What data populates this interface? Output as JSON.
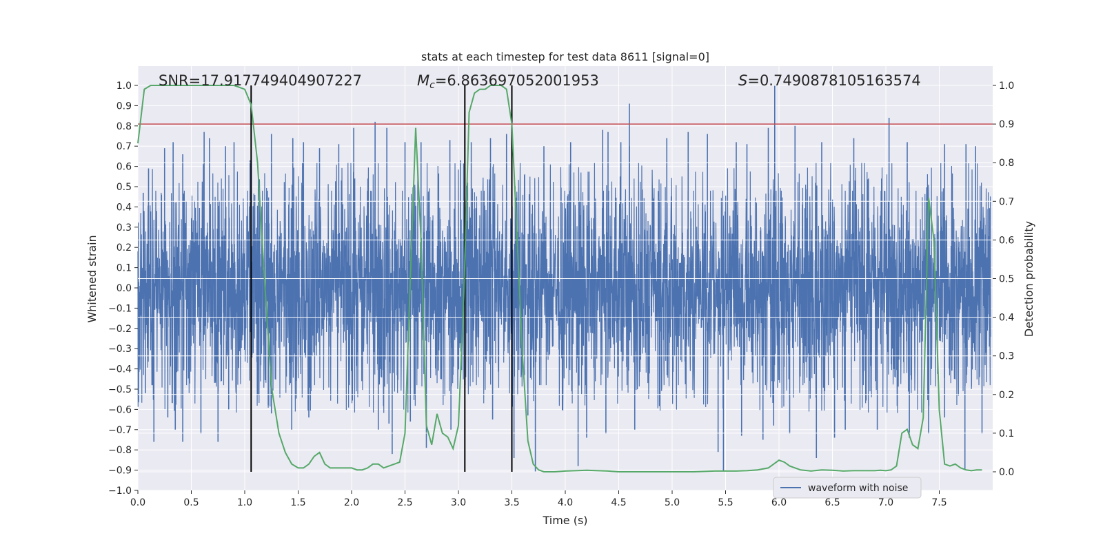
{
  "chart_data": {
    "type": "line",
    "title": "stats at each timestep for test data 8611 [signal=0]",
    "xlabel": "Time (s)",
    "ylabel": "Whitened strain",
    "y2label": "Detection probability",
    "xlim": [
      0.0,
      8.0
    ],
    "ylim": [
      -1.0,
      1.0
    ],
    "y2lim": [
      -0.045,
      1.045
    ],
    "xticks": [
      "0.0",
      "0.5",
      "1.0",
      "1.5",
      "2.0",
      "2.5",
      "3.0",
      "3.5",
      "4.0",
      "4.5",
      "5.0",
      "5.5",
      "6.0",
      "6.5",
      "7.0",
      "7.5"
    ],
    "yticks": [
      "-1.0",
      "-0.9",
      "-0.8",
      "-0.7",
      "-0.6",
      "-0.5",
      "-0.4",
      "-0.3",
      "-0.2",
      "-0.1",
      "0.0",
      "0.1",
      "0.2",
      "0.3",
      "0.4",
      "0.5",
      "0.6",
      "0.7",
      "0.8",
      "0.9",
      "1.0"
    ],
    "y2ticks": [
      "0.0",
      "0.1",
      "0.2",
      "0.3",
      "0.4",
      "0.5",
      "0.6",
      "0.7",
      "0.8",
      "0.9",
      "1.0"
    ],
    "grid": true,
    "legend_position": "lower-right",
    "annotations": {
      "snr": "SNR=17.917749404907227",
      "mc_symbol": "M",
      "mc_sub": "c",
      "mc_value": "=6.863697052001953",
      "s_symbol": "S",
      "s_value": "=0.7490878105163574"
    },
    "series": [
      {
        "name": "waveform with noise",
        "axis": "left",
        "color": "#4c72b0",
        "samples": 4096,
        "t_end": 7.98,
        "core_amplitude": 0.48,
        "spikes_up": [
          {
            "t": 0.05,
            "v": 0.47
          },
          {
            "t": 0.1,
            "v": 0.59
          },
          {
            "t": 0.25,
            "v": 0.69
          },
          {
            "t": 0.33,
            "v": 0.72
          },
          {
            "t": 0.42,
            "v": 0.66
          },
          {
            "t": 0.62,
            "v": 0.77
          },
          {
            "t": 0.67,
            "v": 0.74
          },
          {
            "t": 0.82,
            "v": 0.7
          },
          {
            "t": 0.9,
            "v": 0.72
          },
          {
            "t": 1.05,
            "v": 0.63
          },
          {
            "t": 1.25,
            "v": 0.76
          },
          {
            "t": 1.45,
            "v": 0.74
          },
          {
            "t": 1.55,
            "v": 0.72
          },
          {
            "t": 1.7,
            "v": 0.69
          },
          {
            "t": 1.88,
            "v": 0.71
          },
          {
            "t": 2.02,
            "v": 0.79
          },
          {
            "t": 2.22,
            "v": 0.82
          },
          {
            "t": 2.33,
            "v": 0.79
          },
          {
            "t": 2.5,
            "v": 0.72
          },
          {
            "t": 2.65,
            "v": 0.72
          },
          {
            "t": 2.92,
            "v": 0.73
          },
          {
            "t": 3.02,
            "v": 0.63
          },
          {
            "t": 3.12,
            "v": 0.72
          },
          {
            "t": 3.3,
            "v": 0.74
          },
          {
            "t": 3.45,
            "v": 0.76
          },
          {
            "t": 3.8,
            "v": 0.7
          },
          {
            "t": 4.05,
            "v": 0.72
          },
          {
            "t": 4.35,
            "v": 0.78
          },
          {
            "t": 4.4,
            "v": 0.77
          },
          {
            "t": 4.52,
            "v": 0.72
          },
          {
            "t": 4.6,
            "v": 0.7
          },
          {
            "t": 4.6,
            "v": 0.91
          },
          {
            "t": 4.95,
            "v": 0.74
          },
          {
            "t": 5.15,
            "v": 0.77
          },
          {
            "t": 5.33,
            "v": 0.76
          },
          {
            "t": 5.6,
            "v": 0.72
          },
          {
            "t": 5.7,
            "v": 0.71
          },
          {
            "t": 5.9,
            "v": 0.79
          },
          {
            "t": 5.96,
            "v": 1.0
          },
          {
            "t": 6.15,
            "v": 0.8
          },
          {
            "t": 6.4,
            "v": 0.72
          },
          {
            "t": 6.7,
            "v": 0.74
          },
          {
            "t": 7.03,
            "v": 0.84
          },
          {
            "t": 7.2,
            "v": 0.72
          },
          {
            "t": 7.55,
            "v": 0.71
          },
          {
            "t": 7.75,
            "v": 0.71
          },
          {
            "t": 7.84,
            "v": 0.7
          }
        ],
        "spikes_down": [
          {
            "t": 0.07,
            "v": -0.52
          },
          {
            "t": 0.15,
            "v": -0.76
          },
          {
            "t": 0.28,
            "v": -0.64
          },
          {
            "t": 0.35,
            "v": -0.7
          },
          {
            "t": 0.42,
            "v": -0.76
          },
          {
            "t": 0.59,
            "v": -0.72
          },
          {
            "t": 0.75,
            "v": -0.76
          },
          {
            "t": 0.85,
            "v": -0.6
          },
          {
            "t": 1.22,
            "v": -0.58
          },
          {
            "t": 1.25,
            "v": -0.62
          },
          {
            "t": 1.44,
            "v": -0.7
          },
          {
            "t": 1.6,
            "v": -0.64
          },
          {
            "t": 2.25,
            "v": -0.7
          },
          {
            "t": 2.35,
            "v": -0.67
          },
          {
            "t": 2.38,
            "v": -0.82
          },
          {
            "t": 2.55,
            "v": -0.66
          },
          {
            "t": 2.7,
            "v": -0.79
          },
          {
            "t": 2.93,
            "v": -0.7
          },
          {
            "t": 3.32,
            "v": -0.65
          },
          {
            "t": 3.52,
            "v": -0.84
          },
          {
            "t": 3.65,
            "v": -0.63
          },
          {
            "t": 3.72,
            "v": -0.91
          },
          {
            "t": 4.12,
            "v": -0.88
          },
          {
            "t": 4.2,
            "v": -0.74
          },
          {
            "t": 4.38,
            "v": -0.72
          },
          {
            "t": 4.65,
            "v": -0.7
          },
          {
            "t": 5.43,
            "v": -0.81
          },
          {
            "t": 5.48,
            "v": -0.91
          },
          {
            "t": 5.65,
            "v": -0.73
          },
          {
            "t": 5.85,
            "v": -0.75
          },
          {
            "t": 5.95,
            "v": -0.68
          },
          {
            "t": 6.1,
            "v": -0.72
          },
          {
            "t": 6.35,
            "v": -0.84
          },
          {
            "t": 6.52,
            "v": -0.74
          },
          {
            "t": 6.62,
            "v": -0.7
          },
          {
            "t": 6.92,
            "v": -0.7
          },
          {
            "t": 7.22,
            "v": -0.74
          },
          {
            "t": 7.4,
            "v": -0.72
          },
          {
            "t": 7.55,
            "v": -0.64
          },
          {
            "t": 7.74,
            "v": -0.9
          },
          {
            "t": 7.9,
            "v": -0.72
          }
        ]
      },
      {
        "axis": "right",
        "color": "#55a868",
        "x": [
          0.0,
          0.06,
          0.12,
          0.3,
          0.6,
          0.9,
          1.0,
          1.06,
          1.12,
          1.18,
          1.25,
          1.32,
          1.38,
          1.44,
          1.5,
          1.55,
          1.6,
          1.65,
          1.7,
          1.75,
          1.8,
          1.85,
          1.9,
          1.95,
          2.0,
          2.05,
          2.1,
          2.15,
          2.2,
          2.25,
          2.3,
          2.35,
          2.4,
          2.45,
          2.5,
          2.55,
          2.6,
          2.65,
          2.7,
          2.75,
          2.8,
          2.85,
          2.9,
          2.95,
          3.0,
          3.05,
          3.1,
          3.15,
          3.2,
          3.25,
          3.3,
          3.35,
          3.4,
          3.45,
          3.5,
          3.55,
          3.6,
          3.65,
          3.7,
          3.75,
          3.8,
          3.9,
          4.0,
          4.1,
          4.2,
          4.3,
          4.4,
          4.5,
          4.6,
          4.7,
          4.8,
          5.0,
          5.2,
          5.4,
          5.6,
          5.7,
          5.8,
          5.9,
          5.95,
          6.0,
          6.05,
          6.1,
          6.2,
          6.3,
          6.4,
          6.5,
          6.6,
          6.7,
          6.8,
          6.9,
          6.95,
          7.0,
          7.05,
          7.1,
          7.15,
          7.2,
          7.25,
          7.3,
          7.35,
          7.4,
          7.45,
          7.5,
          7.55,
          7.6,
          7.65,
          7.7,
          7.75,
          7.8,
          7.85,
          7.9
        ],
        "values": [
          0.85,
          0.99,
          1.0,
          1.0,
          1.0,
          1.0,
          0.99,
          0.95,
          0.8,
          0.52,
          0.22,
          0.1,
          0.05,
          0.02,
          0.01,
          0.01,
          0.02,
          0.04,
          0.05,
          0.02,
          0.01,
          0.01,
          0.01,
          0.01,
          0.01,
          0.005,
          0.005,
          0.01,
          0.02,
          0.02,
          0.01,
          0.015,
          0.02,
          0.025,
          0.1,
          0.5,
          0.89,
          0.6,
          0.12,
          0.07,
          0.15,
          0.1,
          0.09,
          0.06,
          0.12,
          0.45,
          0.93,
          0.98,
          0.99,
          0.99,
          1.0,
          1.0,
          1.0,
          0.99,
          0.9,
          0.6,
          0.3,
          0.08,
          0.02,
          0.005,
          0.0,
          0.0,
          0.002,
          0.003,
          0.004,
          0.003,
          0.002,
          0.0,
          0.0,
          0.0,
          0.0,
          0.0,
          0.0,
          0.002,
          0.002,
          0.003,
          0.005,
          0.01,
          0.02,
          0.03,
          0.025,
          0.015,
          0.005,
          0.002,
          0.005,
          0.004,
          0.002,
          0.003,
          0.003,
          0.003,
          0.004,
          0.003,
          0.005,
          0.015,
          0.1,
          0.11,
          0.07,
          0.06,
          0.14,
          0.71,
          0.6,
          0.16,
          0.02,
          0.015,
          0.02,
          0.01,
          0.005,
          0.003,
          0.005,
          0.005
        ]
      }
    ],
    "hlines": [
      {
        "axis": "right",
        "y": 0.9,
        "color": "#c44e52"
      }
    ],
    "vlines": [
      {
        "x": 1.06
      },
      {
        "x": 3.06
      },
      {
        "x": 3.5
      }
    ]
  }
}
